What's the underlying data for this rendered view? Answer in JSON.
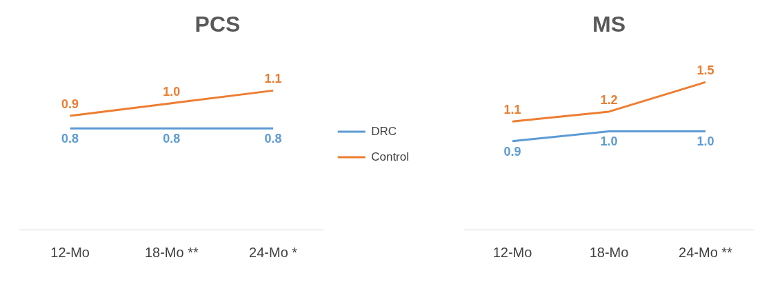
{
  "chart_data": [
    {
      "type": "line",
      "title": "PCS",
      "categories": [
        "12-Mo",
        "18-Mo **",
        "24-Mo *"
      ],
      "series": [
        {
          "name": "DRC",
          "color": "#5b9bd5",
          "values": [
            0.8,
            0.8,
            0.8
          ],
          "value_labels": [
            "0.8",
            "0.8",
            "0.8"
          ]
        },
        {
          "name": "Control",
          "color": "#ed7d31",
          "values": [
            0.9,
            1.0,
            1.1
          ],
          "value_labels": [
            "0.9",
            "1.0",
            "1.1"
          ]
        }
      ],
      "tick_labels": "x",
      "legend": "right",
      "grid": false
    },
    {
      "type": "line",
      "title": "MS",
      "categories": [
        "12-Mo",
        "18-Mo",
        "24-Mo **"
      ],
      "series": [
        {
          "color": "#5b9bd5",
          "values": [
            0.9,
            1.0,
            1.0
          ],
          "value_labels": [
            "0.9",
            "1.0",
            "1.0"
          ]
        },
        {
          "color": "#ed7d31",
          "values": [
            1.1,
            1.2,
            1.5
          ],
          "value_labels": [
            "1.1",
            "1.2",
            "1.5"
          ]
        }
      ],
      "tick_labels": "x",
      "legend": false,
      "grid": false
    }
  ]
}
